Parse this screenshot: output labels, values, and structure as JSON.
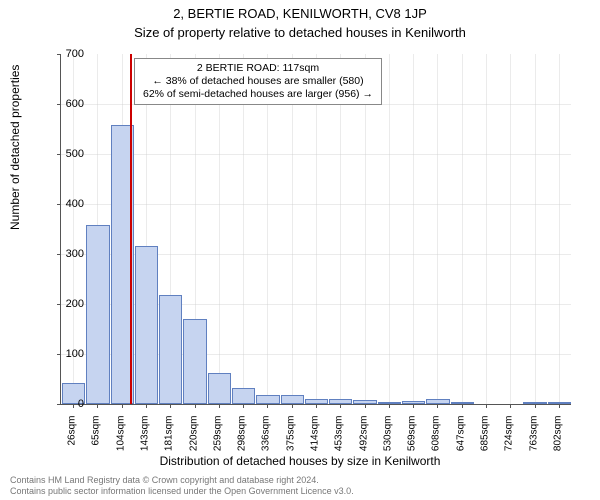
{
  "title": "2, BERTIE ROAD, KENILWORTH, CV8 1JP",
  "subtitle": "Size of property relative to detached houses in Kenilworth",
  "ylabel": "Number of detached properties",
  "xlabel": "Distribution of detached houses by size in Kenilworth",
  "chart": {
    "type": "histogram",
    "ylim": [
      0,
      700
    ],
    "ytick_step": 100,
    "bar_fill": "#c6d4f0",
    "bar_stroke": "#6080c0",
    "grid_color": "#cccccc",
    "background": "#ffffff",
    "marker_color": "#cc0000",
    "marker_x_value": 117,
    "x_start": 26,
    "x_step": 38.82,
    "categories": [
      "26sqm",
      "65sqm",
      "104sqm",
      "143sqm",
      "181sqm",
      "220sqm",
      "259sqm",
      "298sqm",
      "336sqm",
      "375sqm",
      "414sqm",
      "453sqm",
      "492sqm",
      "530sqm",
      "569sqm",
      "608sqm",
      "647sqm",
      "685sqm",
      "724sqm",
      "763sqm",
      "802sqm"
    ],
    "values": [
      42,
      358,
      558,
      316,
      218,
      170,
      62,
      32,
      18,
      18,
      10,
      10,
      8,
      3,
      6,
      10,
      3,
      0,
      0,
      3,
      3
    ]
  },
  "annotation": {
    "line1": "2 BERTIE ROAD: 117sqm",
    "line2": "← 38% of detached houses are smaller (580)",
    "line3": "62% of semi-detached houses are larger (956) →"
  },
  "footer": {
    "line1": "Contains HM Land Registry data © Crown copyright and database right 2024.",
    "line2": "Contains public sector information licensed under the Open Government Licence v3.0."
  }
}
